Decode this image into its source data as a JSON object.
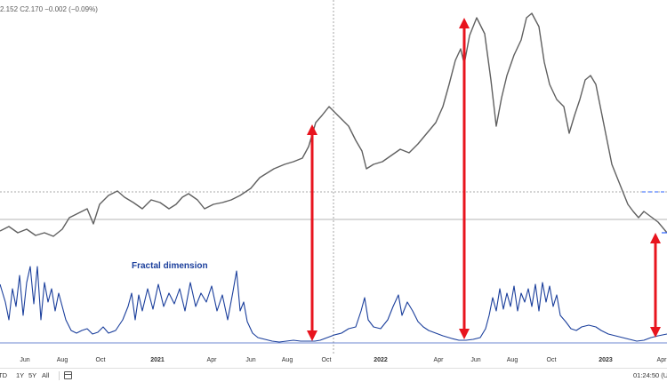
{
  "header": {
    "ohlc_text": "2.152 C2.170 −0.002 (−0.09%)"
  },
  "indicator": {
    "label": "Fractal dimension"
  },
  "time_axis": {
    "labels": [
      "Jun",
      "Aug",
      "Oct",
      "2021",
      "Apr",
      "Jun",
      "Aug",
      "Oct",
      "2022",
      "Apr",
      "Jun",
      "Aug",
      "Oct",
      "2023",
      "Apr"
    ],
    "year_labels": [
      "2021",
      "2022",
      "2023"
    ]
  },
  "range_buttons": [
    "YTD",
    "1Y",
    "5Y",
    "All"
  ],
  "footer": {
    "time": "01:24:50 (U"
  },
  "colors": {
    "price_line": "#606060",
    "fractal_line": "#1b3f9c",
    "arrow": "#e8141e",
    "crosshair": "#909090",
    "dashed_blue": "#2962ff"
  },
  "annotations": {
    "arrow_count": 3
  }
}
